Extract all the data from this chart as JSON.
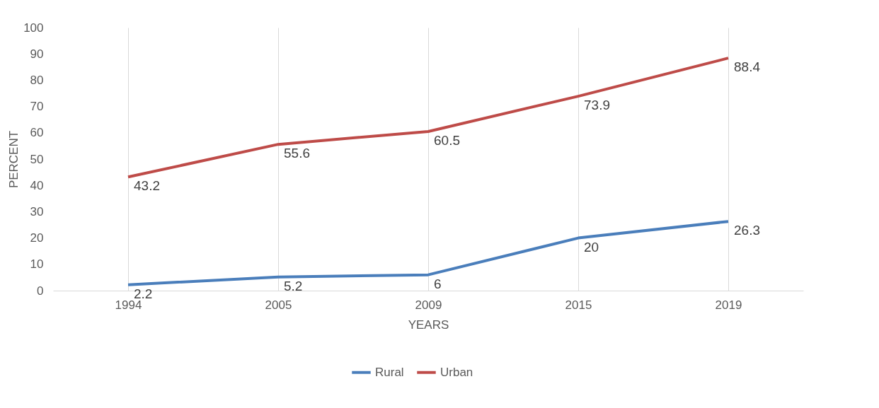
{
  "chart_data": {
    "type": "line",
    "xlabel": "YEARS",
    "ylabel": "PERCENT",
    "categories": [
      "1994",
      "2005",
      "2009",
      "2015",
      "2019"
    ],
    "series": [
      {
        "name": "Rural",
        "color": "#4a7ebb",
        "values": [
          2.2,
          5.2,
          6,
          20,
          26.3
        ]
      },
      {
        "name": "Urban",
        "color": "#be4b48",
        "values": [
          43.2,
          55.6,
          60.5,
          73.9,
          88.4
        ]
      }
    ],
    "ylim": [
      0,
      100
    ],
    "yticks": [
      0,
      10,
      20,
      30,
      40,
      50,
      60,
      70,
      80,
      90,
      100
    ],
    "grid": "x",
    "legend": "bottom",
    "data_labels": true,
    "marker": "none",
    "line_style": "solid"
  }
}
